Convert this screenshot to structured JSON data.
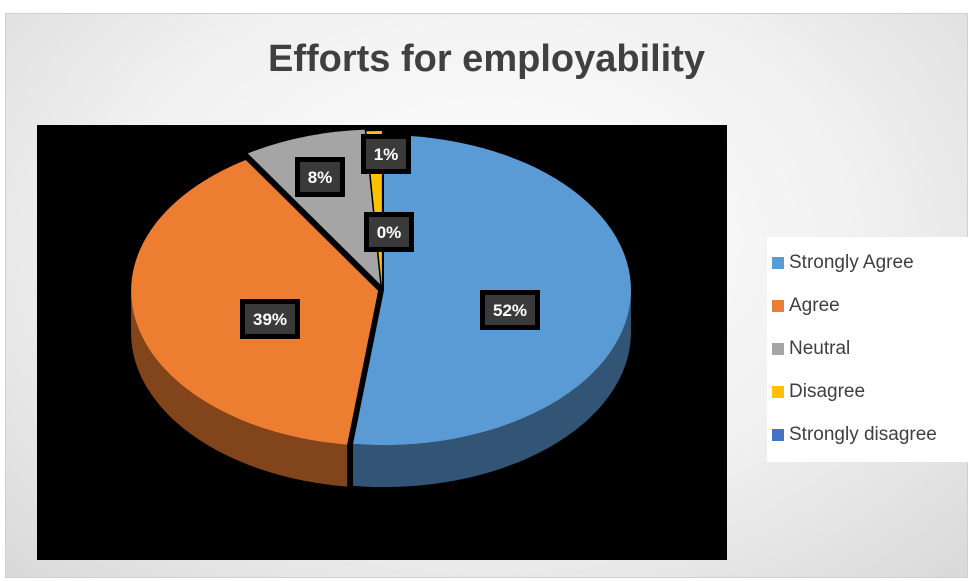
{
  "chart_data": {
    "type": "pie",
    "title": "Efforts for employability",
    "categories": [
      "Strongly Agree",
      "Agree",
      "Neutral",
      "Disagree",
      "Strongly disagree"
    ],
    "values": [
      52,
      39,
      8,
      1,
      0
    ],
    "data_labels": [
      "52%",
      "39%",
      "8%",
      "1%",
      "0%"
    ],
    "colors": [
      "#5b9bd5",
      "#ed7d31",
      "#a5a5a5",
      "#ffc000",
      "#4472c4"
    ],
    "style": "3d-exploded-tilted",
    "legend_position": "right"
  }
}
